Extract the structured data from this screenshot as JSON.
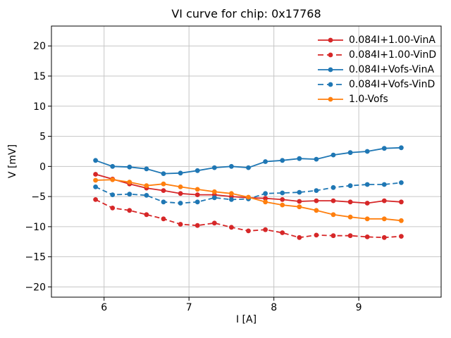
{
  "figure": {
    "background": "#ffffff"
  },
  "chart_data": {
    "type": "line",
    "title": "VI curve for chip: 0x17768",
    "xlabel": "I [A]",
    "ylabel": "V [mV]",
    "xlim": [
      5.38,
      9.97
    ],
    "ylim": [
      -21.7,
      23.3
    ],
    "xticks": [
      6,
      7,
      8,
      9
    ],
    "yticks": [
      -20,
      -15,
      -10,
      -5,
      0,
      5,
      10,
      15,
      20
    ],
    "grid": true,
    "grid_color": "#c6c6c6",
    "spine_color": "#000000",
    "legend_position": "upper right",
    "legend_frame": false,
    "x": [
      5.9,
      6.1,
      6.3,
      6.5,
      6.7,
      6.9,
      7.1,
      7.3,
      7.5,
      7.7,
      7.9,
      8.1,
      8.3,
      8.5,
      8.7,
      8.9,
      9.1,
      9.3,
      9.5
    ],
    "series": [
      {
        "name": "0.084I+1.00-VinA",
        "color": "#d62728",
        "style": "solid",
        "marker": "circle",
        "values": [
          -1.3,
          -2.1,
          -2.9,
          -3.6,
          -4.0,
          -4.5,
          -4.7,
          -4.7,
          -5.0,
          -5.2,
          -5.3,
          -5.5,
          -5.8,
          -5.7,
          -5.7,
          -5.9,
          -6.1,
          -5.7,
          -5.9
        ]
      },
      {
        "name": "0.084I+1.00-VinD",
        "color": "#d62728",
        "style": "dashed",
        "marker": "circle",
        "values": [
          -5.5,
          -6.9,
          -7.3,
          -8.0,
          -8.7,
          -9.6,
          -9.8,
          -9.4,
          -10.1,
          -10.7,
          -10.5,
          -11.0,
          -11.8,
          -11.4,
          -11.5,
          -11.5,
          -11.7,
          -11.8,
          -11.6
        ]
      },
      {
        "name": "0.084I+Vofs-VinA",
        "color": "#1f77b4",
        "style": "solid",
        "marker": "circle",
        "values": [
          1.0,
          0.0,
          -0.1,
          -0.4,
          -1.2,
          -1.1,
          -0.7,
          -0.2,
          0.0,
          -0.2,
          0.8,
          1.0,
          1.3,
          1.2,
          1.9,
          2.3,
          2.5,
          3.0,
          3.1
        ]
      },
      {
        "name": "0.084I+Vofs-VinD",
        "color": "#1f77b4",
        "style": "dashed",
        "marker": "circle",
        "values": [
          -3.4,
          -4.7,
          -4.6,
          -4.8,
          -5.9,
          -6.1,
          -5.9,
          -5.2,
          -5.5,
          -5.4,
          -4.5,
          -4.4,
          -4.3,
          -4.0,
          -3.5,
          -3.2,
          -3.0,
          -3.0,
          -2.7
        ]
      },
      {
        "name": "1.0-Vofs",
        "color": "#ff7f0e",
        "style": "solid",
        "marker": "circle",
        "values": [
          -2.3,
          -2.2,
          -2.6,
          -3.2,
          -2.9,
          -3.4,
          -3.8,
          -4.2,
          -4.5,
          -5.1,
          -5.9,
          -6.4,
          -6.7,
          -7.3,
          -8.0,
          -8.4,
          -8.7,
          -8.7,
          -9.0
        ]
      }
    ]
  }
}
